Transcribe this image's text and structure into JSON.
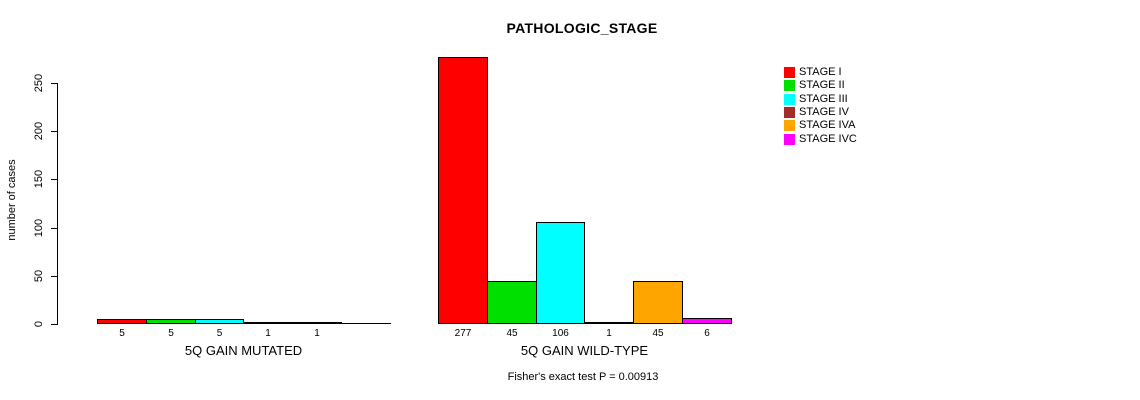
{
  "chart_data": {
    "type": "bar",
    "title": "PATHOLOGIC_STAGE",
    "ylabel": "number of cases",
    "ylim": [
      0,
      250
    ],
    "yticks": [
      0,
      50,
      100,
      150,
      200,
      250
    ],
    "grid": false,
    "legend_position": "right",
    "categories": [
      "5Q GAIN MUTATED",
      "5Q GAIN WILD-TYPE"
    ],
    "series": [
      {
        "name": "STAGE I",
        "color": "#FF0000",
        "values": [
          5,
          277
        ]
      },
      {
        "name": "STAGE II",
        "color": "#00E000",
        "values": [
          5,
          45
        ]
      },
      {
        "name": "STAGE III",
        "color": "#00FFFF",
        "values": [
          5,
          106
        ]
      },
      {
        "name": "STAGE IV",
        "color": "#A52A2A",
        "values": [
          1,
          1
        ]
      },
      {
        "name": "STAGE IVA",
        "color": "#FFA500",
        "values": [
          1,
          45
        ]
      },
      {
        "name": "STAGE IVC",
        "color": "#FF00FF",
        "values": [
          0,
          6
        ]
      }
    ],
    "bar_value_labels": [
      [
        "5",
        "5",
        "5",
        "1",
        "1",
        ""
      ],
      [
        "277",
        "45",
        "106",
        "1",
        "45",
        "6"
      ]
    ],
    "annotation": "Fisher's exact test P = 0.00913"
  }
}
